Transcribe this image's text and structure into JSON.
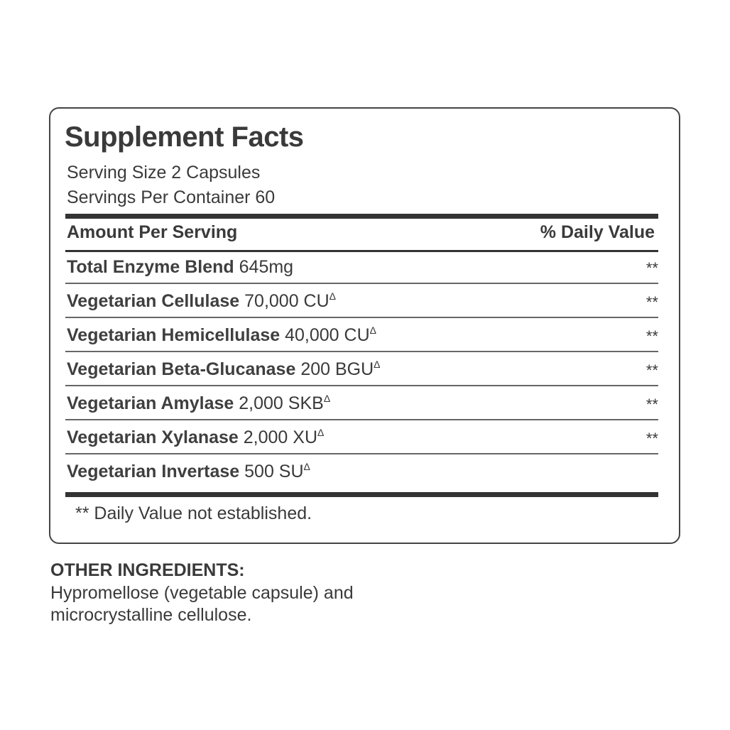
{
  "title": "Supplement Facts",
  "serving_size": "Serving Size 2 Capsules",
  "servings_per_container": "Servings Per Container 60",
  "header": {
    "left": "Amount Per Serving",
    "right": "% Daily Value"
  },
  "rows": [
    {
      "name": "Total Enzyme Blend",
      "amount": " 645mg",
      "mark": "",
      "dv": "**"
    },
    {
      "name": "Vegetarian Cellulase",
      "amount": " 70,000 CU",
      "mark": "Δ",
      "dv": "**"
    },
    {
      "name": "Vegetarian Hemicellulase",
      "amount": " 40,000 CU",
      "mark": "Δ",
      "dv": "**"
    },
    {
      "name": "Vegetarian Beta-Glucanase",
      "amount": " 200 BGU",
      "mark": "Δ",
      "dv": "**"
    },
    {
      "name": "Vegetarian Amylase",
      "amount": " 2,000 SKB",
      "mark": "Δ",
      "dv": "**"
    },
    {
      "name": "Vegetarian Xylanase",
      "amount": " 2,000 XU",
      "mark": "Δ",
      "dv": "**"
    },
    {
      "name": "Vegetarian Invertase",
      "amount": " 500 SU",
      "mark": "Δ",
      "dv": ""
    }
  ],
  "footnote": "** Daily Value not established.",
  "other_ingredients": {
    "heading": "OTHER INGREDIENTS:",
    "text": "Hypromellose (vegetable capsule) and microcrystalline cellulose."
  }
}
